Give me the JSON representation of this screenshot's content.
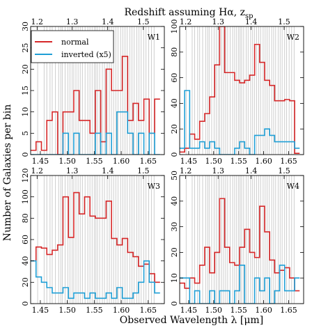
{
  "figure": {
    "top_label": "Redshift assuming Hα, z",
    "top_label_sub": "sp",
    "ylabel": "Number of Galaxies per bin",
    "xlabel": "Observed Wavelength λ [μm]"
  },
  "legend": {
    "items": [
      {
        "label": "normal",
        "color": "#d62728"
      },
      {
        "label": "inverted (x5)",
        "color": "#1f9fd6"
      }
    ]
  },
  "chart_data": [
    {
      "type": "step",
      "panel": "W1",
      "xlim": [
        1.432,
        1.68
      ],
      "ylim": [
        0,
        30
      ],
      "yticks": [
        0,
        5,
        10,
        15,
        20,
        25,
        30
      ],
      "xticks": [
        1.45,
        1.5,
        1.55,
        1.6,
        1.65
      ],
      "ztick_labels": [
        "1.2",
        "1.3",
        "1.4",
        "1.5"
      ],
      "bin_edges": [
        1.432,
        1.442,
        1.452,
        1.462,
        1.472,
        1.482,
        1.492,
        1.502,
        1.512,
        1.522,
        1.532,
        1.542,
        1.552,
        1.562,
        1.572,
        1.582,
        1.592,
        1.602,
        1.612,
        1.622,
        1.632,
        1.642,
        1.652,
        1.662,
        1.672
      ],
      "series": [
        {
          "name": "normal",
          "color": "#d62728",
          "values": [
            1,
            3,
            1,
            8,
            10,
            0,
            10,
            10,
            15,
            8,
            8,
            5,
            15,
            3,
            20,
            15,
            15,
            23,
            8,
            12,
            8,
            13,
            5,
            13
          ]
        },
        {
          "name": "inverted (x5)",
          "color": "#1f9fd6",
          "values": [
            0,
            0,
            0,
            0,
            0,
            0,
            5,
            0,
            5,
            0,
            0,
            0,
            5,
            0,
            5,
            0,
            10,
            10,
            5,
            0,
            5,
            0,
            5,
            0
          ]
        }
      ]
    },
    {
      "type": "step",
      "panel": "W2",
      "xlim": [
        1.432,
        1.68
      ],
      "ylim": [
        0,
        100
      ],
      "yticks": [
        0,
        20,
        40,
        60,
        80,
        100
      ],
      "xticks": [
        1.45,
        1.5,
        1.55,
        1.6,
        1.65
      ],
      "ztick_labels": [
        "1.2",
        "1.3",
        "1.4",
        "1.5"
      ],
      "bin_edges": [
        1.432,
        1.442,
        1.452,
        1.462,
        1.472,
        1.482,
        1.492,
        1.502,
        1.512,
        1.522,
        1.532,
        1.542,
        1.552,
        1.562,
        1.572,
        1.582,
        1.592,
        1.602,
        1.612,
        1.622,
        1.632,
        1.642,
        1.652,
        1.662,
        1.672
      ],
      "series": [
        {
          "name": "normal",
          "color": "#d62728",
          "values": [
            2,
            5,
            16,
            12,
            26,
            32,
            45,
            70,
            100,
            64,
            64,
            58,
            56,
            58,
            62,
            86,
            72,
            58,
            54,
            42,
            42,
            43,
            42,
            1
          ]
        },
        {
          "name": "inverted (x5)",
          "color": "#1f9fd6",
          "values": [
            5,
            50,
            5,
            5,
            10,
            5,
            10,
            5,
            0,
            0,
            0,
            5,
            10,
            5,
            0,
            15,
            15,
            20,
            15,
            10,
            10,
            10,
            10,
            5
          ]
        }
      ]
    },
    {
      "type": "step",
      "panel": "W3",
      "xlim": [
        1.432,
        1.68
      ],
      "ylim": [
        0,
        120
      ],
      "yticks": [
        0,
        20,
        40,
        60,
        80,
        100,
        120
      ],
      "xticks": [
        1.45,
        1.5,
        1.55,
        1.6,
        1.65
      ],
      "ztick_labels": [
        "1.2",
        "1.3",
        "1.4",
        "1.5"
      ],
      "bin_edges": [
        1.432,
        1.442,
        1.452,
        1.462,
        1.472,
        1.482,
        1.492,
        1.502,
        1.512,
        1.522,
        1.532,
        1.542,
        1.552,
        1.562,
        1.572,
        1.582,
        1.592,
        1.602,
        1.612,
        1.622,
        1.632,
        1.642,
        1.652,
        1.662,
        1.672
      ],
      "series": [
        {
          "name": "normal",
          "color": "#d62728",
          "values": [
            40,
            53,
            52,
            46,
            50,
            55,
            100,
            62,
            104,
            84,
            100,
            82,
            80,
            80,
            96,
            61,
            55,
            61,
            48,
            44,
            35,
            37,
            28,
            20
          ]
        },
        {
          "name": "inverted (x5)",
          "color": "#1f9fd6",
          "values": [
            40,
            25,
            20,
            15,
            10,
            10,
            15,
            5,
            10,
            10,
            5,
            10,
            5,
            5,
            10,
            5,
            15,
            5,
            5,
            10,
            20,
            40,
            20,
            10
          ]
        }
      ]
    },
    {
      "type": "step",
      "panel": "W4",
      "xlim": [
        1.432,
        1.68
      ],
      "ylim": [
        0,
        50
      ],
      "yticks": [
        0,
        10,
        20,
        30,
        40,
        50
      ],
      "xticks": [
        1.45,
        1.5,
        1.55,
        1.6,
        1.65
      ],
      "ztick_labels": [
        "1.2",
        "1.3",
        "1.4",
        "1.5"
      ],
      "bin_edges": [
        1.432,
        1.442,
        1.452,
        1.462,
        1.472,
        1.482,
        1.492,
        1.502,
        1.512,
        1.522,
        1.532,
        1.542,
        1.552,
        1.562,
        1.572,
        1.582,
        1.592,
        1.602,
        1.612,
        1.622,
        1.632,
        1.642,
        1.652,
        1.662,
        1.672
      ],
      "series": [
        {
          "name": "normal",
          "color": "#d62728",
          "values": [
            8,
            6,
            10,
            8,
            15,
            22,
            12,
            20,
            41,
            22,
            16,
            15,
            22,
            29,
            20,
            18,
            38,
            28,
            17,
            12,
            13,
            14,
            10,
            5
          ]
        },
        {
          "name": "inverted (x5)",
          "color": "#1f9fd6",
          "values": [
            10,
            10,
            0,
            5,
            0,
            0,
            5,
            0,
            5,
            5,
            0,
            5,
            15,
            0,
            0,
            10,
            5,
            10,
            0,
            5,
            15,
            5,
            5,
            10
          ]
        }
      ]
    }
  ]
}
